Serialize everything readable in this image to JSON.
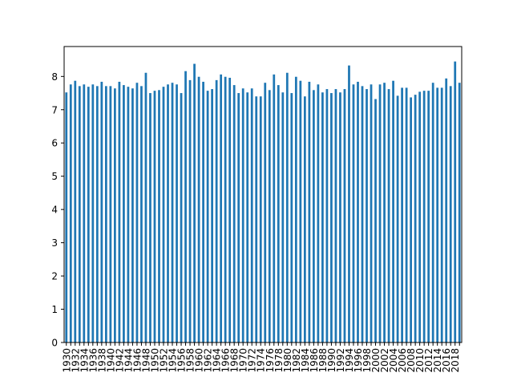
{
  "chart_data": {
    "type": "bar",
    "title": "",
    "xlabel": "",
    "ylabel": "",
    "ylim": [
      0,
      8.9
    ],
    "yticks": [
      0,
      1,
      2,
      3,
      4,
      5,
      6,
      7,
      8
    ],
    "x_tick_step": 2,
    "grid": false,
    "legend": "none",
    "bar_color": "#1f77b4",
    "categories": [
      "1930",
      "1931",
      "1932",
      "1933",
      "1934",
      "1935",
      "1936",
      "1937",
      "1938",
      "1939",
      "1940",
      "1941",
      "1942",
      "1943",
      "1944",
      "1945",
      "1946",
      "1947",
      "1948",
      "1949",
      "1950",
      "1951",
      "1952",
      "1953",
      "1954",
      "1955",
      "1956",
      "1957",
      "1958",
      "1959",
      "1960",
      "1961",
      "1962",
      "1963",
      "1964",
      "1965",
      "1966",
      "1967",
      "1968",
      "1969",
      "1970",
      "1971",
      "1972",
      "1973",
      "1974",
      "1975",
      "1976",
      "1977",
      "1978",
      "1979",
      "1980",
      "1981",
      "1982",
      "1983",
      "1984",
      "1985",
      "1986",
      "1987",
      "1988",
      "1989",
      "1990",
      "1991",
      "1992",
      "1993",
      "1994",
      "1995",
      "1996",
      "1997",
      "1998",
      "1999",
      "2000",
      "2001",
      "2002",
      "2003",
      "2004",
      "2005",
      "2006",
      "2007",
      "2008",
      "2009",
      "2010",
      "2011",
      "2012",
      "2013",
      "2014",
      "2015",
      "2016",
      "2017",
      "2018",
      "2019"
    ],
    "values": [
      7.52,
      7.76,
      7.87,
      7.71,
      7.76,
      7.69,
      7.76,
      7.71,
      7.84,
      7.71,
      7.71,
      7.64,
      7.84,
      7.74,
      7.69,
      7.64,
      7.81,
      7.71,
      8.11,
      7.5,
      7.57,
      7.59,
      7.69,
      7.76,
      7.81,
      7.76,
      7.5,
      8.16,
      7.89,
      8.38,
      7.99,
      7.84,
      7.57,
      7.62,
      7.89,
      8.06,
      7.99,
      7.96,
      7.74,
      7.5,
      7.64,
      7.52,
      7.64,
      7.4,
      7.4,
      7.81,
      7.59,
      8.06,
      7.74,
      7.52,
      8.11,
      7.5,
      7.99,
      7.87,
      7.4,
      7.84,
      7.59,
      7.76,
      7.52,
      7.62,
      7.5,
      7.62,
      7.52,
      7.62,
      8.33,
      7.76,
      7.84,
      7.71,
      7.62,
      7.76,
      7.32,
      7.76,
      7.81,
      7.62,
      7.87,
      7.42,
      7.66,
      7.66,
      7.37,
      7.45,
      7.54,
      7.57,
      7.57,
      7.81,
      7.66,
      7.66,
      7.94,
      7.71,
      8.45,
      7.81
    ]
  }
}
